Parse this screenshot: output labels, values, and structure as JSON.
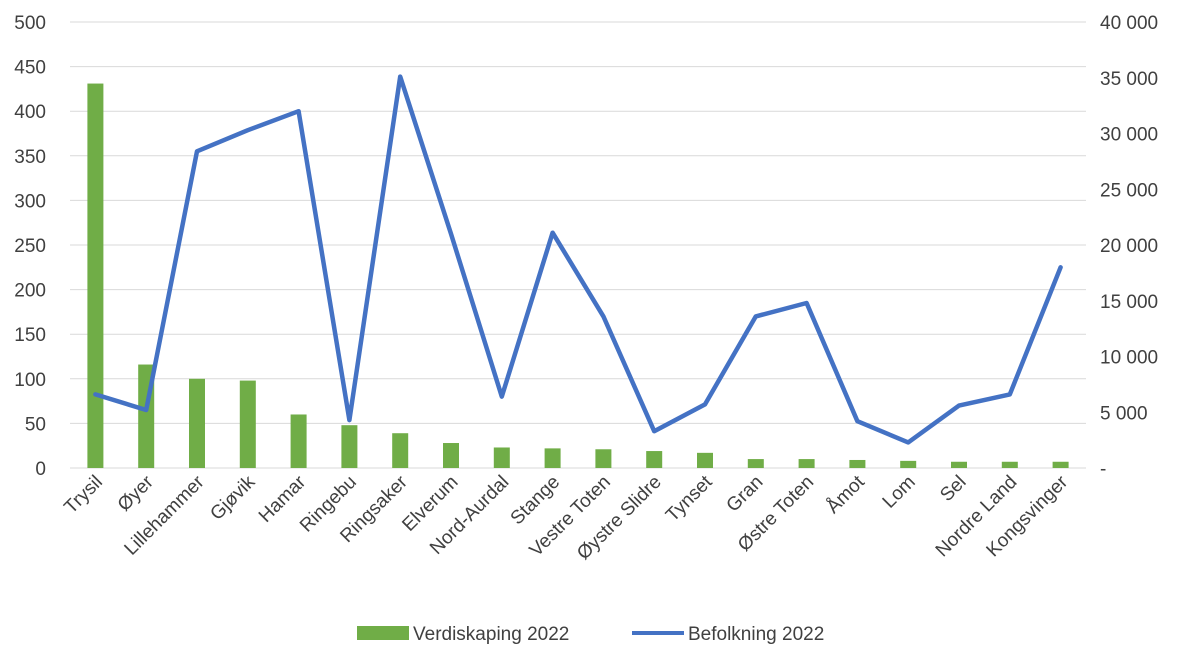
{
  "chart_data": {
    "type": "bar+line",
    "categories": [
      "Trysil",
      "Øyer",
      "Lillehammer",
      "Gjøvik",
      "Hamar",
      "Ringebu",
      "Ringsaker",
      "Elverum",
      "Nord-Aurdal",
      "Stange",
      "Vestre Toten",
      "Øystre Slidre",
      "Tynset",
      "Gran",
      "Østre Toten",
      "Åmot",
      "Lom",
      "Sel",
      "Nordre Land",
      "Kongsvinger"
    ],
    "series": [
      {
        "name": "Verdiskaping 2022",
        "type": "bar",
        "axis": "left",
        "color": "#70ad47",
        "values": [
          431,
          116,
          100,
          98,
          60,
          48,
          39,
          28,
          23,
          22,
          21,
          19,
          17,
          10,
          10,
          9,
          8,
          7,
          7,
          7
        ]
      },
      {
        "name": "Befolkning 2022",
        "type": "line",
        "axis": "right",
        "color": "#4472c4",
        "values": [
          6600,
          5200,
          28400,
          30300,
          32000,
          4300,
          35100,
          21000,
          6400,
          21100,
          13600,
          3300,
          5700,
          13600,
          14800,
          4200,
          2300,
          5600,
          6600,
          18000
        ]
      }
    ],
    "y_left": {
      "min": 0,
      "max": 500,
      "ticks": [
        0,
        50,
        100,
        150,
        200,
        250,
        300,
        350,
        400,
        450,
        500
      ],
      "tick_labels": [
        "0",
        "50",
        "100",
        "150",
        "200",
        "250",
        "300",
        "350",
        "400",
        "450",
        "500"
      ]
    },
    "y_right": {
      "min": 0,
      "max": 40000,
      "ticks": [
        0,
        5000,
        10000,
        15000,
        20000,
        25000,
        30000,
        35000,
        40000
      ],
      "tick_labels": [
        "-",
        "5 000",
        "10 000",
        "15 000",
        "20 000",
        "25 000",
        "30 000",
        "35 000",
        "40 000"
      ]
    },
    "grid": true,
    "legend": "bottom"
  }
}
